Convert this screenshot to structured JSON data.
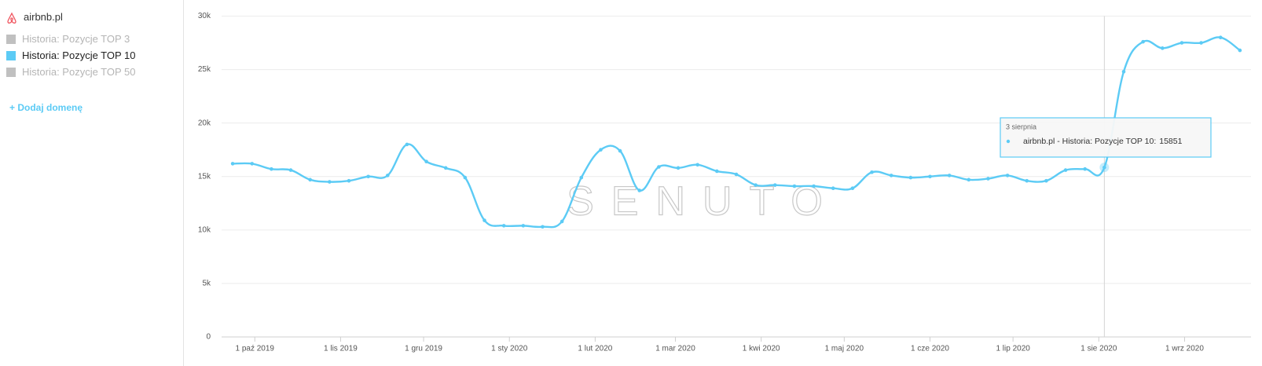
{
  "sidebar": {
    "domain": "airbnb.pl",
    "add_domain": "+ Dodaj domenę"
  },
  "chart_data": {
    "type": "line",
    "watermark": "SENUTO",
    "x": [
      "2019-09-23",
      "2019-09-30",
      "2019-10-07",
      "2019-10-14",
      "2019-10-21",
      "2019-10-28",
      "2019-11-04",
      "2019-11-11",
      "2019-11-18",
      "2019-11-25",
      "2019-12-02",
      "2019-12-09",
      "2019-12-16",
      "2019-12-23",
      "2019-12-30",
      "2020-01-06",
      "2020-01-13",
      "2020-01-20",
      "2020-01-27",
      "2020-02-03",
      "2020-02-10",
      "2020-02-17",
      "2020-02-24",
      "2020-03-02",
      "2020-03-09",
      "2020-03-16",
      "2020-03-23",
      "2020-03-30",
      "2020-04-06",
      "2020-04-13",
      "2020-04-20",
      "2020-04-27",
      "2020-05-04",
      "2020-05-11",
      "2020-05-18",
      "2020-05-25",
      "2020-06-01",
      "2020-06-08",
      "2020-06-15",
      "2020-06-22",
      "2020-06-29",
      "2020-07-06",
      "2020-07-13",
      "2020-07-20",
      "2020-07-27",
      "2020-08-03",
      "2020-08-10",
      "2020-08-17",
      "2020-08-24",
      "2020-08-31",
      "2020-09-07",
      "2020-09-14",
      "2020-09-21"
    ],
    "series": [
      {
        "name": "Historia: Pozycje TOP 3",
        "color": "#c0c0c0",
        "visible": false
      },
      {
        "name": "Historia: Pozycje TOP 10",
        "color": "#5ccbf5",
        "visible": true,
        "values": [
          16200,
          16200,
          15700,
          15600,
          14700,
          14500,
          14600,
          15000,
          15100,
          18000,
          16400,
          15800,
          14900,
          10900,
          10400,
          10400,
          10300,
          10800,
          14900,
          17500,
          17400,
          13700,
          15900,
          15800,
          16100,
          15500,
          15200,
          14200,
          14200,
          14100,
          14100,
          13900,
          13900,
          15400,
          15100,
          14900,
          15000,
          15100,
          14700,
          14800,
          15100,
          14600,
          14600,
          15600,
          15700,
          15851,
          24800,
          27600,
          27000,
          27500,
          27500,
          28000,
          26800
        ]
      },
      {
        "name": "Historia: Pozycje TOP 50",
        "color": "#c0c0c0",
        "visible": false
      }
    ],
    "xlim": [
      "2019-09-19",
      "2020-09-25"
    ],
    "xticks": [
      {
        "value": "2019-10-01",
        "label": "1 paź 2019"
      },
      {
        "value": "2019-11-01",
        "label": "1 lis 2019"
      },
      {
        "value": "2019-12-01",
        "label": "1 gru 2019"
      },
      {
        "value": "2020-01-01",
        "label": "1 sty 2020"
      },
      {
        "value": "2020-02-01",
        "label": "1 lut 2020"
      },
      {
        "value": "2020-03-01",
        "label": "1 mar 2020"
      },
      {
        "value": "2020-04-01",
        "label": "1 kwi 2020"
      },
      {
        "value": "2020-05-01",
        "label": "1 maj 2020"
      },
      {
        "value": "2020-06-01",
        "label": "1 cze 2020"
      },
      {
        "value": "2020-07-01",
        "label": "1 lip 2020"
      },
      {
        "value": "2020-08-01",
        "label": "1 sie 2020"
      },
      {
        "value": "2020-09-01",
        "label": "1 wrz 2020"
      }
    ],
    "ylim": [
      0,
      30000
    ],
    "yticks": [
      0,
      {
        "value": 5000,
        "label": "5k"
      },
      {
        "value": 10000,
        "label": "10k"
      },
      {
        "value": 15000,
        "label": "15k"
      },
      {
        "value": 20000,
        "label": "20k"
      },
      {
        "value": 25000,
        "label": "25k"
      },
      {
        "value": 30000,
        "label": "30k"
      }
    ],
    "grid": true,
    "tooltip": {
      "title": "3 sierpnia",
      "text": "airbnb.pl - Historia: Pozycje TOP 10:",
      "series": 1,
      "index": 45
    }
  }
}
